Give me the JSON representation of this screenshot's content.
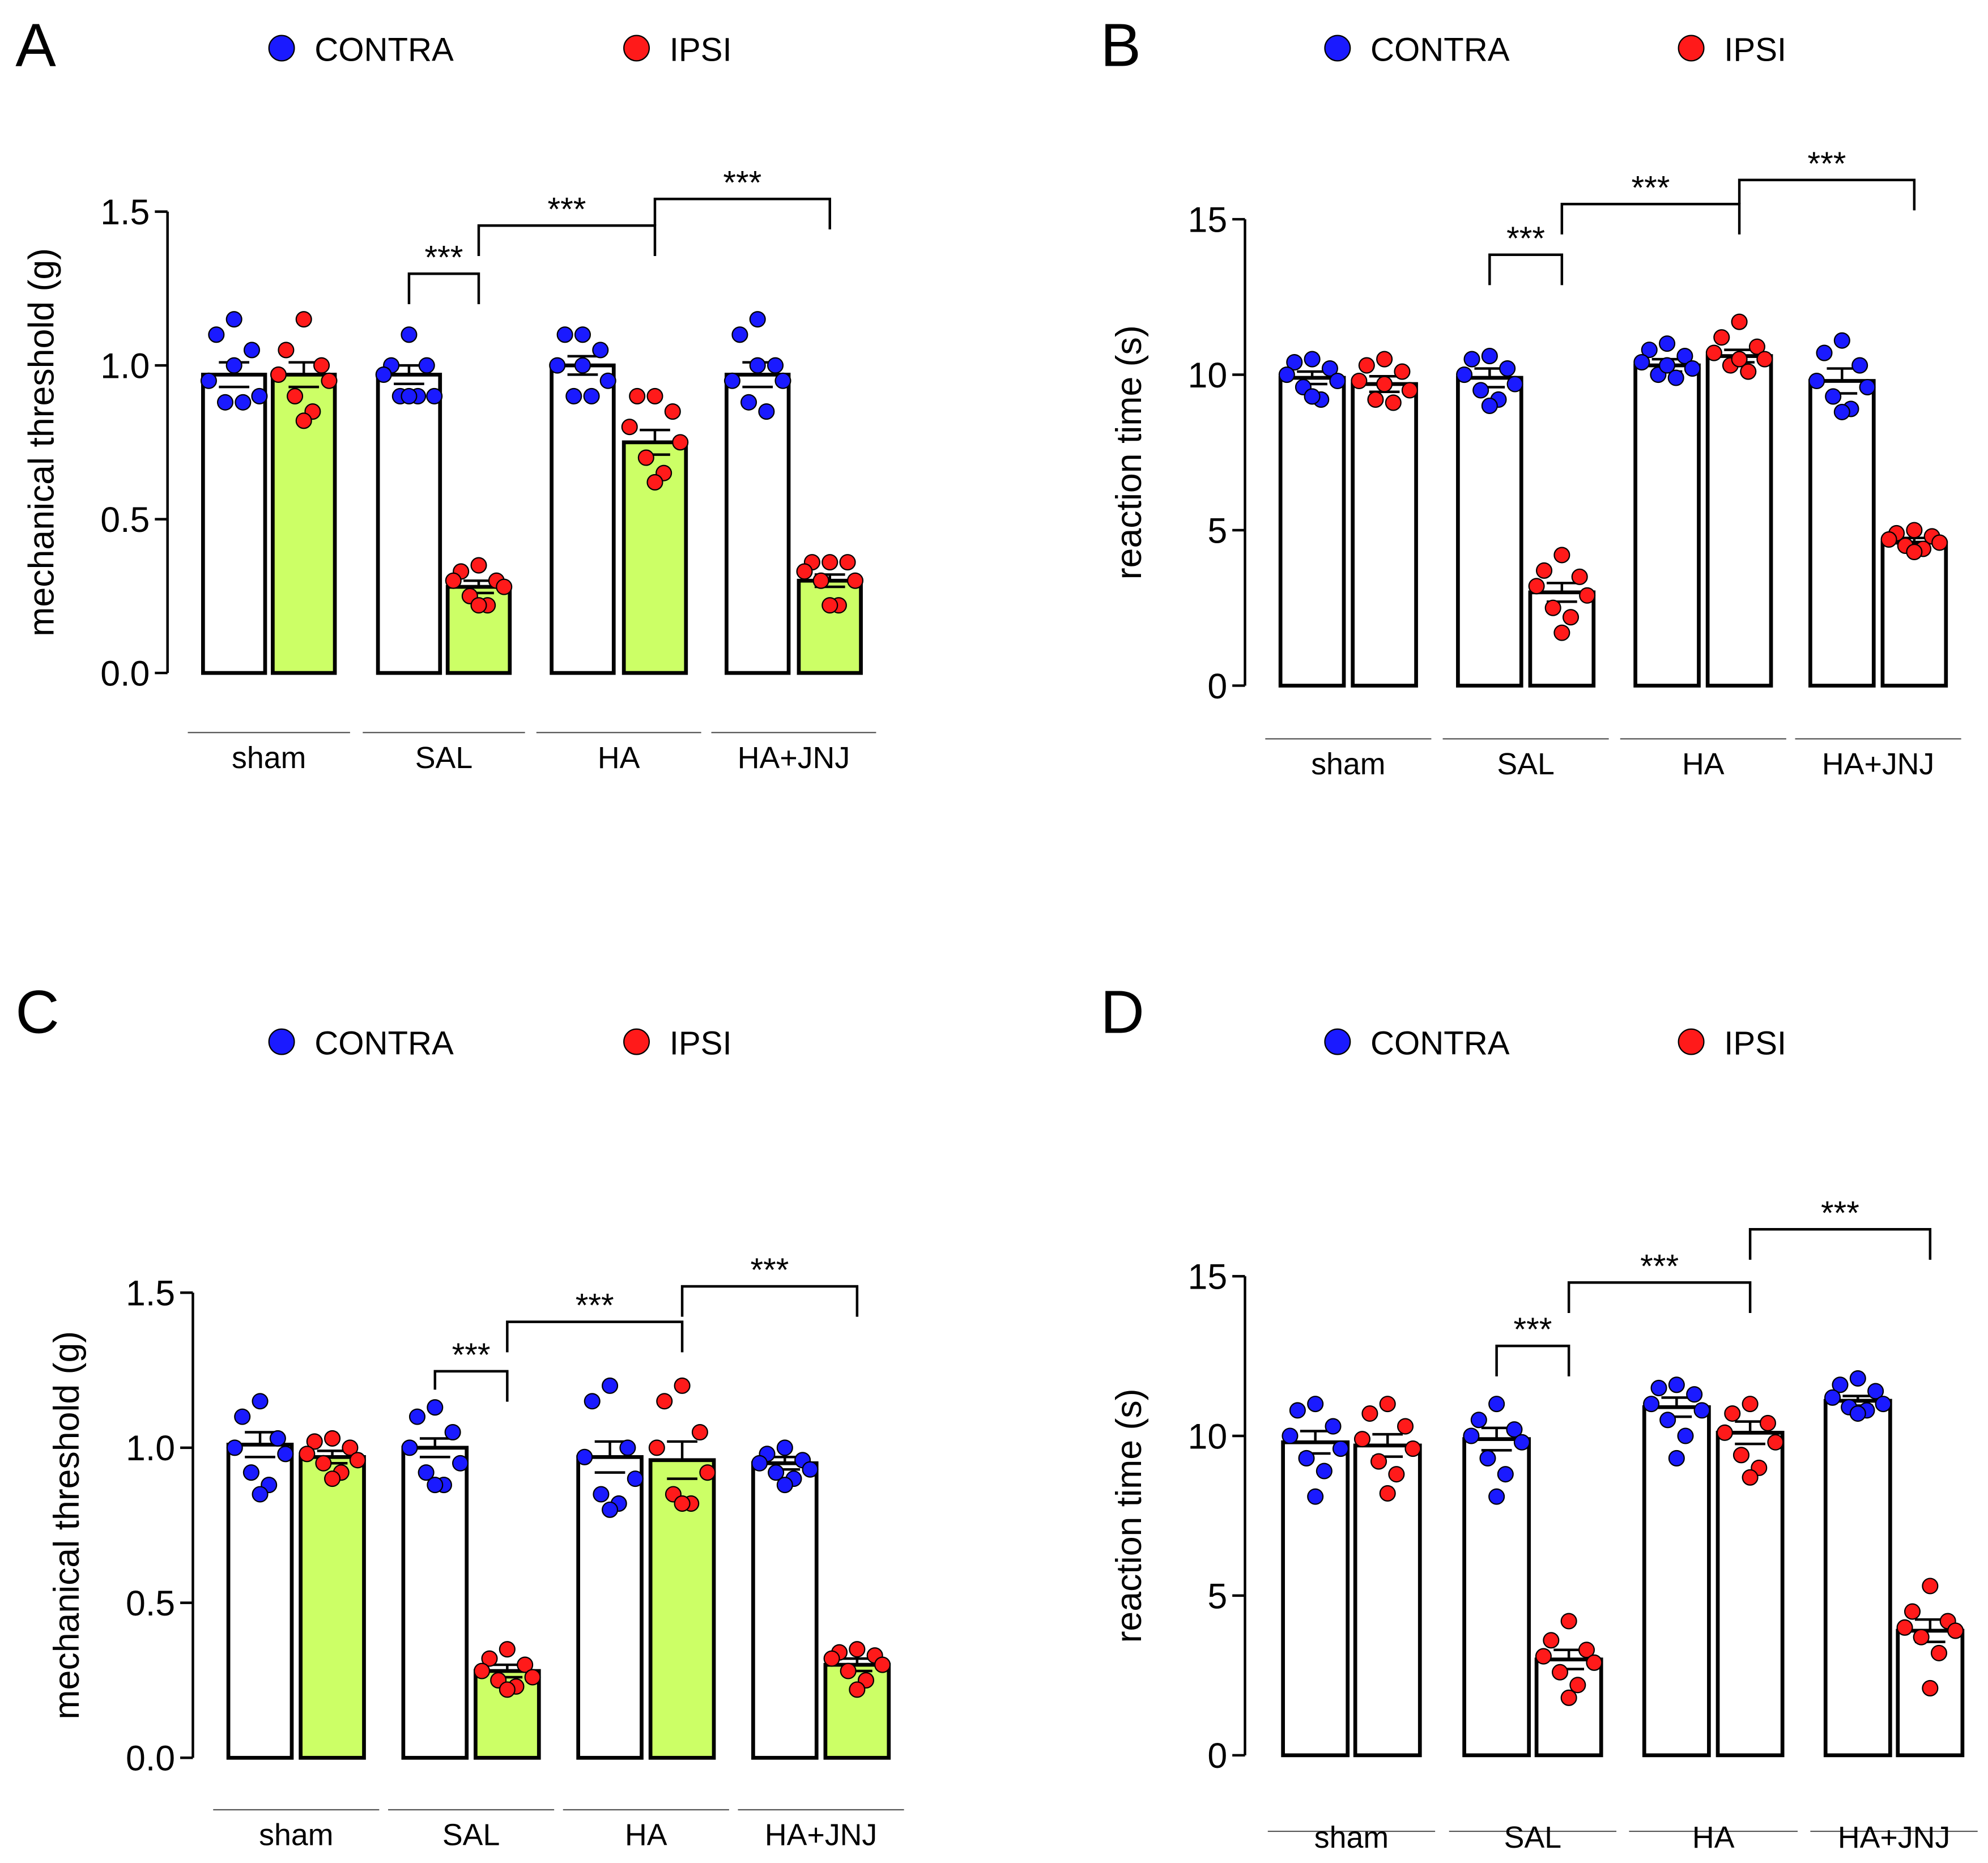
{
  "colors": {
    "contra": "#1a1aff",
    "ipsi": "#ff1a1a",
    "green": "#ccff66",
    "white": "#ffffff"
  },
  "legend": {
    "contra": "CONTRA",
    "ipsi": "IPSI"
  },
  "chart_data": [
    {
      "panel": "A",
      "type": "bar",
      "ylabel": "mechanical threshold (g)",
      "ylim": [
        0,
        1.5
      ],
      "yticks": [
        "0.0",
        "0.5",
        "1.0",
        "1.5"
      ],
      "ytick_values": [
        0,
        0.5,
        1.0,
        1.5
      ],
      "categories": [
        "sham",
        "SAL",
        "HA",
        "HA+JNJ"
      ],
      "ipsi_fill": "#ccff66",
      "series": [
        {
          "name": "CONTRA",
          "values": [
            0.97,
            0.97,
            1.0,
            0.97
          ],
          "sem": [
            0.04,
            0.03,
            0.03,
            0.04
          ],
          "points": [
            [
              1.15,
              1.1,
              1.05,
              0.95,
              0.9,
              0.88,
              0.88,
              1.0
            ],
            [
              1.1,
              1.0,
              1.0,
              0.97,
              0.9,
              0.9,
              0.9,
              0.9
            ],
            [
              1.1,
              1.1,
              1.05,
              1.0,
              0.95,
              0.9,
              0.9,
              1.0
            ],
            [
              1.15,
              1.1,
              1.0,
              0.95,
              0.95,
              0.88,
              0.85,
              1.0
            ]
          ]
        },
        {
          "name": "IPSI",
          "values": [
            0.97,
            0.28,
            0.75,
            0.3
          ],
          "sem": [
            0.04,
            0.02,
            0.04,
            0.02
          ],
          "points": [
            [
              1.15,
              1.05,
              1.0,
              0.97,
              0.95,
              0.9,
              0.85,
              0.82
            ],
            [
              0.35,
              0.33,
              0.3,
              0.3,
              0.28,
              0.25,
              0.22,
              0.22
            ],
            [
              0.9,
              0.9,
              0.85,
              0.8,
              0.75,
              0.7,
              0.65,
              0.62
            ],
            [
              0.36,
              0.36,
              0.36,
              0.33,
              0.3,
              0.3,
              0.22,
              0.22
            ]
          ]
        }
      ],
      "significance": [
        {
          "from": "SAL CONTRA",
          "to": "SAL IPSI",
          "label": "***"
        },
        {
          "from": "SAL IPSI",
          "to": "HA IPSI",
          "label": "***"
        },
        {
          "from": "HA IPSI",
          "to": "HA+JNJ IPSI",
          "label": "***"
        }
      ]
    },
    {
      "panel": "B",
      "type": "bar",
      "ylabel": "reaction time (s)",
      "ylim": [
        0,
        15
      ],
      "yticks": [
        "0",
        "5",
        "10",
        "15"
      ],
      "ytick_values": [
        0,
        5,
        10,
        15
      ],
      "categories": [
        "sham",
        "SAL",
        "HA",
        "HA+JNJ"
      ],
      "ipsi_fill": "#ffffff",
      "series": [
        {
          "name": "CONTRA",
          "values": [
            9.9,
            9.9,
            10.3,
            9.8
          ],
          "sem": [
            0.2,
            0.3,
            0.2,
            0.4
          ],
          "points": [
            [
              10.5,
              10.4,
              10.2,
              10.0,
              9.8,
              9.6,
              9.2,
              9.3
            ],
            [
              10.6,
              10.5,
              10.2,
              10.0,
              9.7,
              9.5,
              9.2,
              9.0
            ],
            [
              11.0,
              10.8,
              10.6,
              10.4,
              10.2,
              10.0,
              9.9,
              10.3
            ],
            [
              11.1,
              10.7,
              10.3,
              9.8,
              9.6,
              9.3,
              8.9,
              8.8
            ]
          ]
        },
        {
          "name": "IPSI",
          "values": [
            9.7,
            3.0,
            10.6,
            4.6
          ],
          "sem": [
            0.25,
            0.3,
            0.2,
            0.15
          ],
          "points": [
            [
              10.5,
              10.3,
              10.1,
              9.8,
              9.5,
              9.2,
              9.1,
              9.7
            ],
            [
              4.2,
              3.7,
              3.5,
              3.2,
              2.9,
              2.5,
              2.2,
              1.7
            ],
            [
              11.7,
              11.2,
              10.9,
              10.7,
              10.5,
              10.3,
              10.1,
              10.5
            ],
            [
              5.0,
              4.9,
              4.8,
              4.7,
              4.6,
              4.5,
              4.4,
              4.3
            ]
          ]
        }
      ],
      "significance": [
        {
          "from": "SAL CONTRA",
          "to": "SAL IPSI",
          "label": "***"
        },
        {
          "from": "SAL IPSI",
          "to": "HA IPSI",
          "label": "***"
        },
        {
          "from": "HA IPSI",
          "to": "HA+JNJ IPSI",
          "label": "***"
        }
      ]
    },
    {
      "panel": "C",
      "type": "bar",
      "ylabel": "mechanical threshold (g)",
      "ylim": [
        0,
        1.5
      ],
      "yticks": [
        "0.0",
        "0.5",
        "1.0",
        "1.5"
      ],
      "ytick_values": [
        0,
        0.5,
        1.0,
        1.5
      ],
      "categories": [
        "sham",
        "SAL",
        "HA",
        "HA+JNJ"
      ],
      "ipsi_fill": "#ccff66",
      "series": [
        {
          "name": "CONTRA",
          "values": [
            1.01,
            1.0,
            0.97,
            0.95
          ],
          "sem": [
            0.04,
            0.03,
            0.05,
            0.02
          ],
          "points": [
            [
              1.15,
              1.1,
              1.03,
              1.0,
              0.98,
              0.92,
              0.88,
              0.85
            ],
            [
              1.13,
              1.1,
              1.05,
              1.0,
              0.95,
              0.92,
              0.88,
              0.88
            ],
            [
              1.2,
              1.15,
              1.0,
              0.97,
              0.9,
              0.85,
              0.82,
              0.8
            ],
            [
              1.0,
              0.98,
              0.96,
              0.95,
              0.93,
              0.92,
              0.9,
              0.88
            ]
          ]
        },
        {
          "name": "IPSI",
          "values": [
            0.97,
            0.28,
            0.96,
            0.3
          ],
          "sem": [
            0.02,
            0.02,
            0.06,
            0.02
          ],
          "points": [
            [
              1.03,
              1.02,
              1.0,
              0.98,
              0.96,
              0.95,
              0.92,
              0.9
            ],
            [
              0.35,
              0.32,
              0.3,
              0.28,
              0.26,
              0.25,
              0.23,
              0.22
            ],
            [
              1.2,
              1.15,
              1.05,
              1.0,
              0.92,
              0.85,
              0.82,
              0.82
            ],
            [
              0.35,
              0.34,
              0.33,
              0.32,
              0.3,
              0.28,
              0.25,
              0.22
            ]
          ]
        }
      ],
      "significance": [
        {
          "from": "SAL CONTRA",
          "to": "SAL IPSI",
          "label": "***"
        },
        {
          "from": "SAL IPSI",
          "to": "HA IPSI",
          "label": "***"
        },
        {
          "from": "HA IPSI",
          "to": "HA+JNJ IPSI",
          "label": "***"
        }
      ]
    },
    {
      "panel": "D",
      "type": "bar",
      "ylabel": "reaction time (s)",
      "ylim": [
        0,
        15
      ],
      "yticks": [
        "0",
        "5",
        "10",
        "15"
      ],
      "ytick_values": [
        0,
        5,
        10,
        15
      ],
      "categories": [
        "sham",
        "SAL",
        "HA",
        "HA+JNJ"
      ],
      "ipsi_fill": "#ffffff",
      "series": [
        {
          "name": "CONTRA",
          "values": [
            9.8,
            9.9,
            10.9,
            11.1
          ],
          "sem": [
            0.35,
            0.35,
            0.3,
            0.15
          ],
          "points": [
            [
              11.0,
              10.8,
              10.3,
              10.0,
              9.6,
              9.3,
              8.9,
              8.1
            ],
            [
              11.0,
              10.5,
              10.2,
              10.0,
              9.8,
              9.3,
              8.8,
              8.1
            ],
            [
              11.6,
              11.5,
              11.3,
              11.0,
              10.8,
              10.5,
              10.0,
              9.3
            ],
            [
              11.8,
              11.6,
              11.4,
              11.2,
              11.0,
              10.9,
              10.8,
              10.7
            ]
          ]
        },
        {
          "name": "IPSI",
          "values": [
            9.7,
            3.0,
            10.1,
            3.9
          ],
          "sem": [
            0.35,
            0.3,
            0.35,
            0.35
          ],
          "points": [
            [
              11.0,
              10.7,
              10.3,
              9.9,
              9.6,
              9.2,
              8.8,
              8.2
            ],
            [
              4.2,
              3.6,
              3.3,
              3.1,
              2.9,
              2.6,
              2.2,
              1.8
            ],
            [
              11.0,
              10.7,
              10.4,
              10.1,
              9.8,
              9.4,
              9.0,
              8.7
            ],
            [
              5.3,
              4.5,
              4.2,
              4.0,
              3.9,
              3.7,
              3.2,
              2.1
            ]
          ]
        }
      ],
      "significance": [
        {
          "from": "SAL CONTRA",
          "to": "SAL IPSI",
          "label": "***"
        },
        {
          "from": "SAL IPSI",
          "to": "HA IPSI",
          "label": "***"
        },
        {
          "from": "HA IPSI",
          "to": "HA+JNJ IPSI",
          "label": "***"
        }
      ]
    }
  ]
}
